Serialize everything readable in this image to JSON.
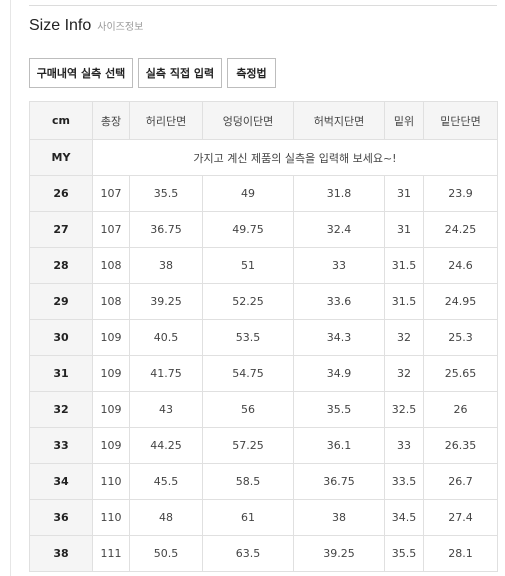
{
  "header": {
    "title": "Size Info",
    "subtitle": "사이즈정보"
  },
  "buttons": {
    "purchase_select": "구매내역 실측 선택",
    "direct_input": "실측 직접 입력",
    "measure_method": "측정법"
  },
  "table": {
    "columns": [
      "cm",
      "총장",
      "허리단면",
      "엉덩이단면",
      "허벅지단면",
      "밑위",
      "밑단단면"
    ],
    "my_label": "MY",
    "my_message": "가지고 계신 제품의 실측을 입력해 보세요~!",
    "rows": [
      [
        "26",
        "107",
        "35.5",
        "49",
        "31.8",
        "31",
        "23.9"
      ],
      [
        "27",
        "107",
        "36.75",
        "49.75",
        "32.4",
        "31",
        "24.25"
      ],
      [
        "28",
        "108",
        "38",
        "51",
        "33",
        "31.5",
        "24.6"
      ],
      [
        "29",
        "108",
        "39.25",
        "52.25",
        "33.6",
        "31.5",
        "24.95"
      ],
      [
        "30",
        "109",
        "40.5",
        "53.5",
        "34.3",
        "32",
        "25.3"
      ],
      [
        "31",
        "109",
        "41.75",
        "54.75",
        "34.9",
        "32",
        "25.65"
      ],
      [
        "32",
        "109",
        "43",
        "56",
        "35.5",
        "32.5",
        "26"
      ],
      [
        "33",
        "109",
        "44.25",
        "57.25",
        "36.1",
        "33",
        "26.35"
      ],
      [
        "34",
        "110",
        "45.5",
        "58.5",
        "36.75",
        "33.5",
        "26.7"
      ],
      [
        "36",
        "110",
        "48",
        "61",
        "38",
        "34.5",
        "27.4"
      ],
      [
        "38",
        "111",
        "50.5",
        "63.5",
        "39.25",
        "35.5",
        "28.1"
      ]
    ]
  }
}
